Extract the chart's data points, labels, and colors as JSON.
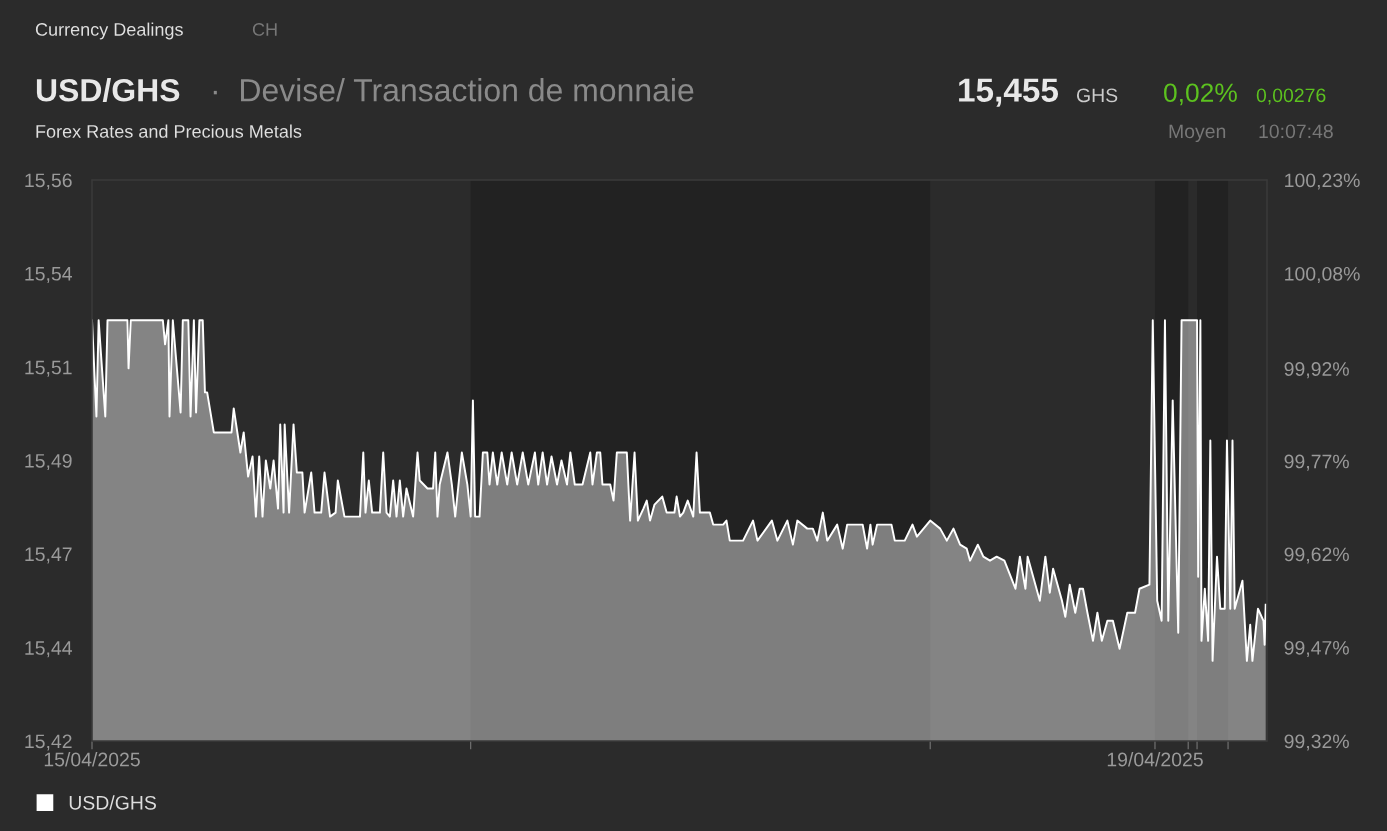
{
  "chart_data": {
    "type": "area",
    "title": "USD/GHS",
    "subtitle": "·  Devise/ Transaction de monnaie",
    "annotations": [
      "Currency Dealings",
      "CH",
      "Forex Rates and Precious Metals",
      "15,455",
      "GHS",
      "0,02%",
      "0,00276",
      "Moyen",
      "10:07:48"
    ],
    "x": [
      "2025-04-15T00:00",
      "2025-04-15T00:24",
      "2025-04-15T00:36",
      "2025-04-15T01:12",
      "2025-04-15T01:24",
      "2025-04-15T03:12",
      "2025-04-15T03:18",
      "2025-04-15T03:30",
      "2025-04-15T06:24",
      "2025-04-15T06:36",
      "2025-04-15T06:54",
      "2025-04-15T07:00",
      "2025-04-15T07:18",
      "2025-04-15T08:00",
      "2025-04-15T08:12",
      "2025-04-15T08:42",
      "2025-04-15T08:54",
      "2025-04-15T09:12",
      "2025-04-15T09:24",
      "2025-04-15T09:42",
      "2025-04-15T10:00",
      "2025-04-15T10:12",
      "2025-04-15T10:24",
      "2025-04-15T11:00",
      "2025-04-15T11:36",
      "2025-04-15T12:36",
      "2025-04-15T12:48",
      "2025-04-15T13:24",
      "2025-04-15T13:42",
      "2025-04-15T14:06",
      "2025-04-15T14:30",
      "2025-04-15T14:48",
      "2025-04-15T15:06",
      "2025-04-15T15:24",
      "2025-04-15T15:42",
      "2025-04-15T16:06",
      "2025-04-15T16:24",
      "2025-04-15T16:48",
      "2025-04-15T17:00",
      "2025-04-15T17:18",
      "2025-04-15T17:24",
      "2025-04-15T17:48",
      "2025-04-15T18:12",
      "2025-04-15T18:30",
      "2025-04-15T19:00",
      "2025-04-15T19:12",
      "2025-04-15T19:48",
      "2025-04-15T20:06",
      "2025-04-15T20:42",
      "2025-04-15T21:00",
      "2025-04-15T21:30",
      "2025-04-15T22:00",
      "2025-04-15T22:12",
      "2025-04-15T22:48",
      "2025-04-16T00:12",
      "2025-04-16T00:30",
      "2025-04-16T00:42",
      "2025-04-16T01:00",
      "2025-04-16T01:18",
      "2025-04-16T02:00",
      "2025-04-16T02:18",
      "2025-04-16T02:36",
      "2025-04-16T02:54",
      "2025-04-16T03:12",
      "2025-04-16T03:30",
      "2025-04-16T03:48",
      "2025-04-16T04:06",
      "2025-04-16T04:24",
      "2025-04-16T05:00",
      "2025-04-16T05:24",
      "2025-04-16T05:36",
      "2025-04-16T06:18",
      "2025-04-16T06:48",
      "2025-04-16T07:00",
      "2025-04-16T07:12",
      "2025-04-16T07:24",
      "2025-04-16T08:06",
      "2025-04-16T08:30",
      "2025-04-16T08:48",
      "2025-04-16T09:24",
      "2025-04-16T09:54",
      "2025-04-16T10:12",
      "2025-04-16T10:24",
      "2025-04-16T10:36",
      "2025-04-16T11:00",
      "2025-04-16T11:18",
      "2025-04-16T11:42",
      "2025-04-16T11:54",
      "2025-04-16T12:12",
      "2025-04-16T12:36",
      "2025-04-16T13:00",
      "2025-04-16T13:30",
      "2025-04-16T13:54",
      "2025-04-16T14:24",
      "2025-04-16T14:54",
      "2025-04-16T15:24",
      "2025-04-16T16:00",
      "2025-04-16T16:18",
      "2025-04-16T16:42",
      "2025-04-16T17:06",
      "2025-04-16T17:30",
      "2025-04-16T18:00",
      "2025-04-16T18:24",
      "2025-04-16T18:54",
      "2025-04-16T19:12",
      "2025-04-16T19:36",
      "2025-04-16T20:18",
      "2025-04-16T21:00",
      "2025-04-16T21:12",
      "2025-04-16T21:36",
      "2025-04-16T21:54",
      "2025-04-16T22:06",
      "2025-04-16T22:48",
      "2025-04-16T23:06",
      "2025-04-16T23:24",
      "2025-04-17T00:18",
      "2025-04-17T00:36",
      "2025-04-17T01:00",
      "2025-04-17T01:18",
      "2025-04-17T01:48",
      "2025-04-17T02:06",
      "2025-04-17T02:24",
      "2025-04-17T02:48",
      "2025-04-17T03:30",
      "2025-04-17T03:54",
      "2025-04-17T04:36",
      "2025-04-17T04:48",
      "2025-04-17T05:06",
      "2025-04-17T05:24",
      "2025-04-17T05:48",
      "2025-04-17T06:18",
      "2025-04-17T06:36",
      "2025-04-17T06:54",
      "2025-04-17T07:48",
      "2025-04-17T08:06",
      "2025-04-17T09:00",
      "2025-04-17T09:18",
      "2025-04-17T09:36",
      "2025-04-17T10:48",
      "2025-04-17T11:42",
      "2025-04-17T12:06",
      "2025-04-17T13:24",
      "2025-04-17T13:54",
      "2025-04-17T14:48",
      "2025-04-17T15:18",
      "2025-04-17T15:42",
      "2025-04-17T16:36",
      "2025-04-17T17:06",
      "2025-04-17T17:30",
      "2025-04-17T18:00",
      "2025-04-17T18:24",
      "2025-04-17T19:18",
      "2025-04-17T19:48",
      "2025-04-17T20:12",
      "2025-04-17T21:36",
      "2025-04-17T22:00",
      "2025-04-17T22:18",
      "2025-04-17T22:30",
      "2025-04-17T22:54",
      "2025-04-18T00:12",
      "2025-04-18T00:30",
      "2025-04-18T01:24",
      "2025-04-18T02:06",
      "2025-04-18T02:30",
      "2025-04-18T03:42",
      "2025-04-18T04:36",
      "2025-04-18T05:12",
      "2025-04-18T05:48",
      "2025-04-18T06:24",
      "2025-04-18T07:00",
      "2025-04-18T07:18",
      "2025-04-18T08:00",
      "2025-04-18T08:30",
      "2025-04-18T09:06",
      "2025-04-18T09:42",
      "2025-04-18T10:24",
      "2025-04-18T11:24",
      "2025-04-18T11:48",
      "2025-04-18T12:18",
      "2025-04-18T12:30",
      "2025-04-18T13:36",
      "2025-04-18T14:06",
      "2025-04-18T14:30",
      "2025-04-18T14:48",
      "2025-04-18T15:36",
      "2025-04-18T15:54",
      "2025-04-18T16:18",
      "2025-04-18T16:48",
      "2025-04-18T17:12",
      "2025-04-18T17:30",
      "2025-04-18T17:54",
      "2025-04-18T18:24",
      "2025-04-18T18:48",
      "2025-04-18T19:12",
      "2025-04-18T19:42",
      "2025-04-18T20:12",
      "2025-04-18T20:48",
      "2025-04-18T21:30",
      "2025-04-18T22:12",
      "2025-04-18T22:36",
      "2025-04-18T23:30",
      "2025-04-18T23:48",
      "2025-04-19T00:12",
      "2025-04-19T00:36",
      "2025-04-19T00:54",
      "2025-04-19T01:12",
      "2025-04-19T01:36",
      "2025-04-19T02:06",
      "2025-04-19T02:24",
      "2025-04-19T03:48",
      "2025-04-19T03:54",
      "2025-04-19T04:06",
      "2025-04-19T04:12",
      "2025-04-19T04:30",
      "2025-04-19T04:48",
      "2025-04-19T05:00",
      "2025-04-19T05:12",
      "2025-04-19T05:36",
      "2025-04-19T05:54",
      "2025-04-19T06:18",
      "2025-04-19T06:30",
      "2025-04-19T06:48",
      "2025-04-19T07:00",
      "2025-04-19T07:12",
      "2025-04-19T07:54",
      "2025-04-19T08:18",
      "2025-04-19T08:36",
      "2025-04-19T08:48",
      "2025-04-19T09:18",
      "2025-04-19T09:48",
      "2025-04-19T09:54",
      "2025-04-19T10:00"
    ],
    "series": [
      {
        "name": "USD/GHS",
        "color": "#ffffff",
        "values": [
          15.525,
          15.501,
          15.525,
          15.501,
          15.525,
          15.525,
          15.513,
          15.525,
          15.525,
          15.519,
          15.525,
          15.501,
          15.525,
          15.502,
          15.525,
          15.525,
          15.501,
          15.525,
          15.502,
          15.525,
          15.525,
          15.507,
          15.507,
          15.497,
          15.497,
          15.497,
          15.503,
          15.492,
          15.497,
          15.486,
          15.491,
          15.476,
          15.491,
          15.476,
          15.49,
          15.483,
          15.49,
          15.478,
          15.499,
          15.477,
          15.499,
          15.477,
          15.499,
          15.487,
          15.487,
          15.477,
          15.487,
          15.477,
          15.477,
          15.487,
          15.476,
          15.477,
          15.485,
          15.476,
          15.476,
          15.492,
          15.477,
          15.485,
          15.477,
          15.477,
          15.492,
          15.477,
          15.476,
          15.485,
          15.476,
          15.485,
          15.476,
          15.483,
          15.476,
          15.492,
          15.485,
          15.483,
          15.483,
          15.492,
          15.476,
          15.484,
          15.492,
          15.484,
          15.476,
          15.492,
          15.484,
          15.476,
          15.505,
          15.476,
          15.476,
          15.492,
          15.492,
          15.484,
          15.492,
          15.484,
          15.492,
          15.484,
          15.492,
          15.484,
          15.492,
          15.484,
          15.492,
          15.484,
          15.492,
          15.484,
          15.491,
          15.484,
          15.49,
          15.484,
          15.492,
          15.484,
          15.484,
          15.492,
          15.484,
          15.492,
          15.492,
          15.484,
          15.484,
          15.48,
          15.492,
          15.492,
          15.475,
          15.492,
          15.475,
          15.478,
          15.48,
          15.475,
          15.479,
          15.481,
          15.477,
          15.477,
          15.481,
          15.476,
          15.477,
          15.48,
          15.476,
          15.492,
          15.477,
          15.477,
          15.474,
          15.474,
          15.475,
          15.47,
          15.47,
          15.475,
          15.47,
          15.475,
          15.47,
          15.475,
          15.469,
          15.475,
          15.473,
          15.473,
          15.47,
          15.477,
          15.47,
          15.474,
          15.468,
          15.474,
          15.474,
          15.468,
          15.474,
          15.469,
          15.474,
          15.474,
          15.47,
          15.47,
          15.474,
          15.471,
          15.475,
          15.473,
          15.47,
          15.473,
          15.469,
          15.468,
          15.465,
          15.469,
          15.466,
          15.465,
          15.466,
          15.465,
          15.458,
          15.466,
          15.458,
          15.466,
          15.455,
          15.466,
          15.457,
          15.463,
          15.455,
          15.451,
          15.459,
          15.452,
          15.458,
          15.458,
          15.452,
          15.445,
          15.452,
          15.445,
          15.45,
          15.45,
          15.443,
          15.452,
          15.452,
          15.458,
          15.459,
          15.525,
          15.455,
          15.45,
          15.525,
          15.45,
          15.505,
          15.447,
          15.525,
          15.525,
          15.461,
          15.525,
          15.445,
          15.458,
          15.445,
          15.495,
          15.44,
          15.466,
          15.453,
          15.453,
          15.495,
          15.453,
          15.495,
          15.453,
          15.46,
          15.44,
          15.449,
          15.44,
          15.453,
          15.45,
          15.444,
          15.454
        ]
      }
    ],
    "xlim": [
      "2025-04-15T00:00",
      "2025-04-19T10:07"
    ],
    "xticks": [
      {
        "value": "2025-04-15",
        "label": "15/04/2025"
      },
      {
        "value": "2025-04-16T10:12",
        "label": null
      },
      {
        "value": "2025-04-18T03:42",
        "label": null
      },
      {
        "value": "2025-04-19",
        "label": "19/04/2025"
      },
      {
        "value": "2025-04-19T03:00",
        "label": null
      },
      {
        "value": "2025-04-19T03:48",
        "label": null
      },
      {
        "value": "2025-04-19T06:36",
        "label": null
      }
    ],
    "ylim": [
      15.42,
      15.56
    ],
    "yticks": [
      {
        "value": 15.42,
        "label": "15,42"
      },
      {
        "value": 15.4433,
        "label": "15,44"
      },
      {
        "value": 15.4667,
        "label": "15,47"
      },
      {
        "value": 15.49,
        "label": "15,49"
      },
      {
        "value": 15.5133,
        "label": "15,51"
      },
      {
        "value": 15.5367,
        "label": "15,54"
      },
      {
        "value": 15.56,
        "label": "15,56"
      }
    ],
    "y2lim": [
      99.32,
      100.23
    ],
    "y2ticks": [
      {
        "value": 99.32,
        "label": "99,32%"
      },
      {
        "value": 99.4717,
        "label": "99,47%"
      },
      {
        "value": 99.6233,
        "label": "99,62%"
      },
      {
        "value": 99.774,
        "label": "99,77%"
      },
      {
        "value": 99.924,
        "label": "99,92%"
      },
      {
        "value": 100.0783,
        "label": "100,08%"
      },
      {
        "value": 100.23,
        "label": "100,23%"
      }
    ],
    "bands": [
      {
        "axis": "x",
        "from": "2025-04-16T10:12",
        "to": "2025-04-18T03:42",
        "color": "#222222"
      },
      {
        "axis": "x",
        "from": "2025-04-19T00:00",
        "to": "2025-04-19T03:00",
        "color": "#222222"
      },
      {
        "axis": "x",
        "from": "2025-04-19T03:48",
        "to": "2025-04-19T06:36",
        "color": "#222222"
      }
    ],
    "legend": "bottom left",
    "line_style": "solid",
    "marker": "none"
  }
}
